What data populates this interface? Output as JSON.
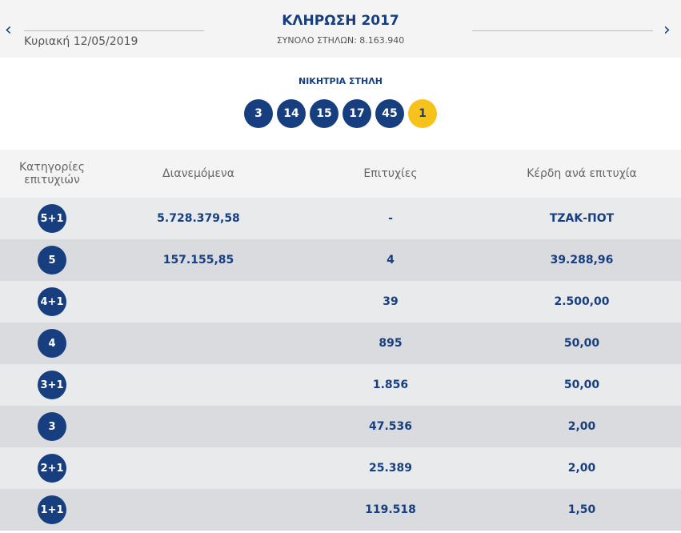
{
  "header": {
    "title": "ΚΛΗΡΩΣΗ 2017",
    "date": "Κυριακή 12/05/2019",
    "subtitle": "ΣΥΝΟΛΟ ΣΤΗΛΩΝ: 8.163.940"
  },
  "winning": {
    "label": "ΝΙΚΗΤΡΙΑ ΣΤΗΛΗ",
    "numbers": [
      "3",
      "14",
      "15",
      "17",
      "45"
    ],
    "bonus": "1"
  },
  "table": {
    "columns": [
      "Κατηγορίες επιτυχιών",
      "Διανεμόμενα",
      "Επιτυχίες",
      "Κέρδη ανά επιτυχία"
    ],
    "rows": [
      {
        "category": "5+1",
        "distributed": "5.728.379,58",
        "winners": "-",
        "prize": "ΤΖΑΚ-ΠΟΤ"
      },
      {
        "category": "5",
        "distributed": "157.155,85",
        "winners": "4",
        "prize": "39.288,96"
      },
      {
        "category": "4+1",
        "winners": "39",
        "prize": "2.500,00"
      },
      {
        "category": "4",
        "winners": "895",
        "prize": "50,00"
      },
      {
        "category": "3+1",
        "winners": "1.856",
        "prize": "50,00"
      },
      {
        "category": "3",
        "winners": "47.536",
        "prize": "2,00"
      },
      {
        "category": "2+1",
        "winners": "25.389",
        "prize": "2,00"
      },
      {
        "category": "1+1",
        "winners": "119.518",
        "prize": "1,50"
      }
    ]
  }
}
